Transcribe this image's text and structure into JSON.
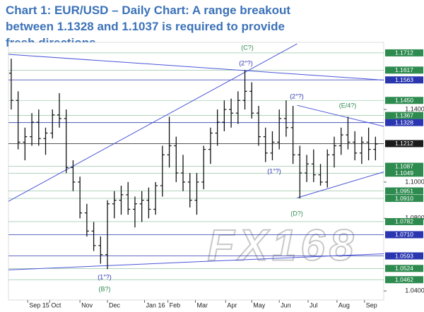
{
  "chart_data": {
    "type": "ohlc",
    "title": "Chart 1: EUR/USD – Daily Chart: A range breakout between 1.1328 and 1.1037 is required to provide fresh directions",
    "x": [
      2,
      7,
      12,
      17,
      22,
      27,
      32,
      37,
      42,
      47,
      52,
      57,
      62,
      67,
      72,
      77,
      82,
      87,
      92,
      97,
      102,
      107,
      112,
      117,
      122,
      127,
      132,
      137,
      142,
      147,
      152,
      157,
      162,
      167,
      172,
      177,
      182,
      187,
      192,
      197,
      202,
      207,
      212,
      217,
      222,
      227,
      232,
      237,
      242,
      247,
      252,
      257,
      262,
      267
    ],
    "open": [
      1.16,
      1.145,
      1.122,
      1.125,
      1.133,
      1.124,
      1.127,
      1.137,
      1.135,
      1.108,
      1.1,
      1.083,
      1.073,
      1.065,
      1.06,
      1.088,
      1.09,
      1.093,
      1.085,
      1.088,
      1.09,
      1.085,
      1.098,
      1.115,
      1.12,
      1.105,
      1.1,
      1.09,
      1.1,
      1.118,
      1.127,
      1.133,
      1.14,
      1.138,
      1.145,
      1.15,
      1.138,
      1.125,
      1.116,
      1.122,
      1.135,
      1.13,
      1.115,
      1.105,
      1.11,
      1.104,
      1.1,
      1.115,
      1.12,
      1.126,
      1.122,
      1.116,
      1.122,
      1.118
    ],
    "high": [
      1.168,
      1.15,
      1.13,
      1.138,
      1.14,
      1.13,
      1.14,
      1.149,
      1.14,
      1.112,
      1.103,
      1.088,
      1.078,
      1.07,
      1.09,
      1.095,
      1.098,
      1.1,
      1.092,
      1.095,
      1.097,
      1.1,
      1.12,
      1.136,
      1.125,
      1.115,
      1.105,
      1.105,
      1.12,
      1.13,
      1.14,
      1.145,
      1.146,
      1.15,
      1.1617,
      1.155,
      1.142,
      1.13,
      1.128,
      1.14,
      1.145,
      1.142,
      1.12,
      1.115,
      1.118,
      1.11,
      1.118,
      1.125,
      1.13,
      1.136,
      1.128,
      1.125,
      1.13,
      1.125
    ],
    "low": [
      1.14,
      1.118,
      1.112,
      1.12,
      1.12,
      1.115,
      1.124,
      1.13,
      1.105,
      1.095,
      1.08,
      1.07,
      1.062,
      1.055,
      1.052,
      1.08,
      1.082,
      1.082,
      1.075,
      1.078,
      1.08,
      1.082,
      1.092,
      1.108,
      1.1,
      1.095,
      1.086,
      1.082,
      1.096,
      1.11,
      1.12,
      1.128,
      1.13,
      1.132,
      1.14,
      1.135,
      1.12,
      1.111,
      1.112,
      1.118,
      1.125,
      1.11,
      1.091,
      1.1,
      1.1,
      1.098,
      1.097,
      1.108,
      1.115,
      1.118,
      1.112,
      1.11,
      1.112,
      1.112
    ],
    "close": [
      1.145,
      1.122,
      1.125,
      1.133,
      1.124,
      1.127,
      1.137,
      1.135,
      1.108,
      1.1,
      1.083,
      1.073,
      1.065,
      1.06,
      1.088,
      1.09,
      1.093,
      1.085,
      1.088,
      1.09,
      1.085,
      1.098,
      1.115,
      1.12,
      1.105,
      1.1,
      1.09,
      1.1,
      1.118,
      1.127,
      1.133,
      1.14,
      1.138,
      1.145,
      1.15,
      1.138,
      1.125,
      1.116,
      1.122,
      1.135,
      1.13,
      1.115,
      1.105,
      1.11,
      1.104,
      1.1,
      1.115,
      1.12,
      1.126,
      1.122,
      1.116,
      1.122,
      1.118,
      1.121
    ],
    "color": "#111111",
    "xlim": [
      0,
      273
    ],
    "ylim": [
      1.035,
      1.177
    ],
    "xticks": [
      {
        "value": 14,
        "label": "Sep 15"
      },
      {
        "value": 30,
        "label": "Oct"
      },
      {
        "value": 52,
        "label": "Nov"
      },
      {
        "value": 72,
        "label": "Dec"
      },
      {
        "value": 99,
        "label": "Jan 16"
      },
      {
        "value": 116,
        "label": "Feb"
      },
      {
        "value": 136,
        "label": "Mar"
      },
      {
        "value": 158,
        "label": "Apr"
      },
      {
        "value": 177,
        "label": "May"
      },
      {
        "value": 197,
        "label": "Jun"
      },
      {
        "value": 218,
        "label": "Jul"
      },
      {
        "value": 239,
        "label": "Aug"
      },
      {
        "value": 259,
        "label": "Sep"
      }
    ],
    "yticks": [
      {
        "value": 1.04,
        "label": "1.0400"
      },
      {
        "value": 1.08,
        "label": "1.0800"
      },
      {
        "value": 1.1,
        "label": "1.1000"
      },
      {
        "value": 1.14,
        "label": "1.1400"
      }
    ],
    "levels": [
      {
        "value": 1.1712,
        "color": "#2e8b4f"
      },
      {
        "value": 1.1617,
        "color": "#2e8b4f"
      },
      {
        "value": 1.1563,
        "color": "#2a36b0"
      },
      {
        "value": 1.145,
        "label": "1.1450",
        "color": "#2e8b4f"
      },
      {
        "value": 1.1367,
        "color": "#2e8b4f"
      },
      {
        "value": 1.1328,
        "color": "#2a36b0"
      },
      {
        "value": 1.1212,
        "color": "#1a1a1a"
      },
      {
        "value": 1.1087,
        "color": "#2e8b4f"
      },
      {
        "value": 1.1049,
        "color": "#2e8b4f"
      },
      {
        "value": 1.0951,
        "color": "#2e8b4f"
      },
      {
        "value": 1.091,
        "label": "1.0910",
        "color": "#2e8b4f"
      },
      {
        "value": 1.0782,
        "color": "#2e8b4f"
      },
      {
        "value": 1.071,
        "label": "1.0710",
        "color": "#2a36b0"
      },
      {
        "value": 1.0593,
        "color": "#2a36b0"
      },
      {
        "value": 1.0524,
        "color": "#2e8b4f"
      },
      {
        "value": 1.0462,
        "color": "#2e8b4f"
      }
    ],
    "trendlines": [
      {
        "x": [
          0,
          210
        ],
        "y": [
          1.0894,
          1.1762
        ],
        "color": "#4a55d8"
      },
      {
        "x": [
          0,
          273
        ],
        "y": [
          1.1704,
          1.1562
        ],
        "color": "#4a55d8"
      },
      {
        "x": [
          0,
          273
        ],
        "y": [
          1.0516,
          1.0605
        ],
        "color": "#4a55d8"
      },
      {
        "x": [
          210,
          273
        ],
        "y": [
          1.1423,
          1.1307
        ],
        "color": "#4a55d8"
      },
      {
        "x": [
          210,
          273
        ],
        "y": [
          1.0913,
          1.1056
        ],
        "color": "#4a55d8"
      }
    ],
    "annotations": [
      {
        "text": "(C?)",
        "color": "#2e8b4f"
      },
      {
        "text": "(2°?)",
        "color": "#2a36b0"
      },
      {
        "text": "(2°?)",
        "color": "#2a36b0"
      },
      {
        "text": "(E/4?)",
        "color": "#2e8b4f"
      },
      {
        "text": "(1°?)",
        "color": "#2a36b0"
      },
      {
        "text": "(D?)",
        "color": "#2e8b4f"
      },
      {
        "text": "(1°?)",
        "color": "#2a36b0"
      },
      {
        "text": "(B?)",
        "color": "#2e8b4f"
      }
    ],
    "watermark": "FX168"
  }
}
